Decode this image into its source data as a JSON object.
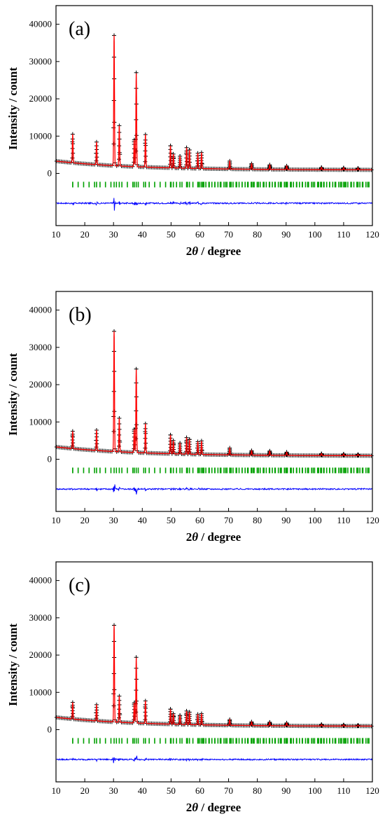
{
  "chart_data": [
    {
      "type": "line",
      "panel_label": "(a)",
      "xlabel_main": "2",
      "xlabel_theta": "θ",
      "xlabel_rest": " / degree",
      "ylabel": "Intensity / count",
      "xlim": [
        10,
        120
      ],
      "ylim": [
        -14000,
        45000
      ],
      "xticks": [
        "10",
        "20",
        "30",
        "40",
        "50",
        "60",
        "70",
        "80",
        "90",
        "100",
        "110",
        "120"
      ],
      "yticks": [
        "0",
        "10000",
        "20000",
        "30000",
        "40000"
      ],
      "background": {
        "start": 3300,
        "end": 900
      },
      "peaks": [
        [
          15.8,
          10500
        ],
        [
          24.1,
          8400
        ],
        [
          30.2,
          37000
        ],
        [
          32.0,
          12800
        ],
        [
          37.2,
          9000
        ],
        [
          37.9,
          27000
        ],
        [
          41.1,
          10400
        ],
        [
          49.8,
          7400
        ],
        [
          50.8,
          5200
        ],
        [
          53.1,
          4600
        ],
        [
          55.4,
          6900
        ],
        [
          56.4,
          6300
        ],
        [
          59.3,
          5400
        ],
        [
          60.6,
          5600
        ],
        [
          70.4,
          3300
        ],
        [
          78.0,
          2600
        ],
        [
          84.3,
          2300
        ],
        [
          90.2,
          2000
        ],
        [
          102.3,
          1600
        ],
        [
          110.0,
          1500
        ],
        [
          115.0,
          1400
        ]
      ],
      "tick_offset": -3000,
      "diff_offset": -8000,
      "colors": {
        "observed": "#000000",
        "calculated": "#ff0000",
        "reflections": "#00a000",
        "difference": "#0000ff"
      }
    },
    {
      "type": "line",
      "panel_label": "(b)",
      "xlabel_main": "2",
      "xlabel_theta": "θ",
      "xlabel_rest": " / degree",
      "ylabel": "Intensity / count",
      "xlim": [
        10,
        120
      ],
      "ylim": [
        -14000,
        45000
      ],
      "xticks": [
        "10",
        "20",
        "30",
        "40",
        "50",
        "60",
        "70",
        "80",
        "90",
        "100",
        "110",
        "120"
      ],
      "yticks": [
        "0",
        "10000",
        "20000",
        "30000",
        "40000"
      ],
      "background": {
        "start": 3300,
        "end": 900
      },
      "peaks": [
        [
          15.8,
          7500
        ],
        [
          24.1,
          7800
        ],
        [
          30.2,
          34300
        ],
        [
          32.0,
          11000
        ],
        [
          37.2,
          8000
        ],
        [
          37.9,
          24200
        ],
        [
          41.1,
          9500
        ],
        [
          49.8,
          6500
        ],
        [
          50.8,
          5000
        ],
        [
          53.1,
          4300
        ],
        [
          55.4,
          5800
        ],
        [
          56.4,
          5300
        ],
        [
          59.3,
          4700
        ],
        [
          60.6,
          4900
        ],
        [
          70.4,
          3000
        ],
        [
          78.0,
          2300
        ],
        [
          84.3,
          2200
        ],
        [
          90.2,
          1900
        ],
        [
          102.3,
          1500
        ],
        [
          110.0,
          1400
        ],
        [
          115.0,
          1300
        ]
      ],
      "tick_offset": -3000,
      "diff_offset": -8000,
      "colors": {
        "observed": "#000000",
        "calculated": "#ff0000",
        "reflections": "#00a000",
        "difference": "#0000ff"
      }
    },
    {
      "type": "line",
      "panel_label": "(c)",
      "xlabel_main": "2",
      "xlabel_theta": "θ",
      "xlabel_rest": " / degree",
      "ylabel": "Intensity / count",
      "xlim": [
        10,
        120
      ],
      "ylim": [
        -14000,
        45000
      ],
      "xticks": [
        "10",
        "20",
        "30",
        "40",
        "50",
        "60",
        "70",
        "80",
        "90",
        "100",
        "110",
        "120"
      ],
      "yticks": [
        "0",
        "10000",
        "20000",
        "30000",
        "40000"
      ],
      "background": {
        "start": 3300,
        "end": 900
      },
      "peaks": [
        [
          15.8,
          7300
        ],
        [
          24.1,
          6700
        ],
        [
          30.2,
          28000
        ],
        [
          32.0,
          9000
        ],
        [
          37.2,
          7200
        ],
        [
          37.9,
          19400
        ],
        [
          41.1,
          7700
        ],
        [
          49.8,
          5500
        ],
        [
          50.8,
          4300
        ],
        [
          53.1,
          3800
        ],
        [
          55.4,
          5000
        ],
        [
          56.4,
          4700
        ],
        [
          59.3,
          4100
        ],
        [
          60.6,
          4300
        ],
        [
          70.4,
          2700
        ],
        [
          78.0,
          2100
        ],
        [
          84.3,
          2000
        ],
        [
          90.2,
          1800
        ],
        [
          102.3,
          1400
        ],
        [
          110.0,
          1300
        ],
        [
          115.0,
          1200
        ]
      ],
      "tick_offset": -3000,
      "diff_offset": -8000,
      "colors": {
        "observed": "#000000",
        "calculated": "#ff0000",
        "reflections": "#00a000",
        "difference": "#0000ff"
      }
    }
  ]
}
